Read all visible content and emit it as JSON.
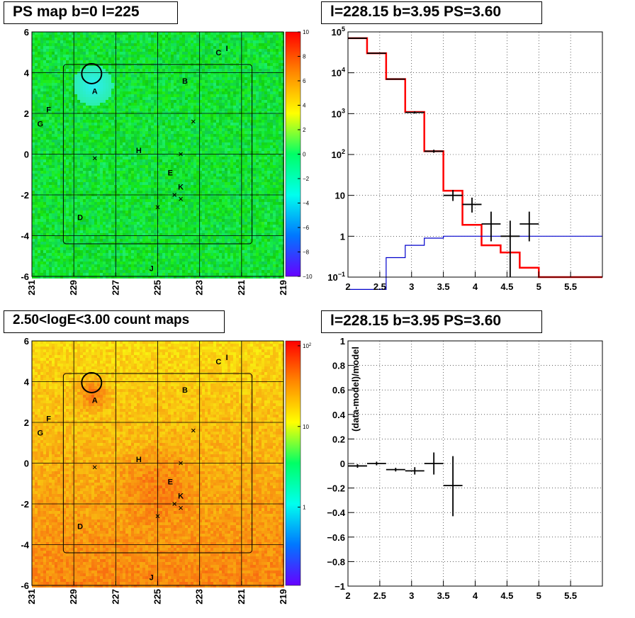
{
  "titles": {
    "top_left": "PS map b=0 l=225",
    "top_right": "l=228.15 b=3.95 PS=3.60",
    "bottom_left": "2.50<logE<3.00 count maps",
    "bottom_right": "l=228.15 b=3.95 PS=3.60"
  },
  "chart_data": [
    {
      "type": "heatmap",
      "title": "PS map b=0 l=225",
      "xlabel": "",
      "ylabel": "",
      "xlim": [
        231,
        219
      ],
      "ylim": [
        -6,
        6
      ],
      "x_ticks": [
        "231",
        "229",
        "227",
        "225",
        "223",
        "221",
        "219"
      ],
      "y_ticks": [
        "6",
        "4",
        "2",
        "0",
        "-2",
        "-4",
        "-6"
      ],
      "colorbar_range": [
        -10,
        10
      ],
      "colorbar_ticks": [
        "10",
        "8",
        "6",
        "4",
        "2",
        "0",
        "−2",
        "−4",
        "−6",
        "−8",
        "−10"
      ],
      "colorbar_colors": [
        "#ff0000",
        "#ff8800",
        "#ffff00",
        "#00ff66",
        "#00ffee",
        "#0077ff",
        "#6600ff"
      ],
      "background_color": "#22e066",
      "source_labels": [
        {
          "label": "A",
          "l": 228.0,
          "b": 3.1
        },
        {
          "label": "B",
          "l": 223.7,
          "b": 3.6
        },
        {
          "label": "C",
          "l": 222.1,
          "b": 5.0
        },
        {
          "label": "I",
          "l": 221.7,
          "b": 5.2
        },
        {
          "label": "D",
          "l": 228.7,
          "b": -3.1
        },
        {
          "label": "E",
          "l": 224.4,
          "b": -0.9
        },
        {
          "label": "F",
          "l": 230.2,
          "b": 2.2
        },
        {
          "label": "G",
          "l": 230.6,
          "b": 1.5
        },
        {
          "label": "H",
          "l": 225.9,
          "b": 0.2
        },
        {
          "label": "J",
          "l": 225.3,
          "b": -5.6
        },
        {
          "label": "K",
          "l": 223.9,
          "b": -1.6
        }
      ],
      "crosses": [
        {
          "l": 223.3,
          "b": 1.6
        },
        {
          "l": 223.9,
          "b": 0.0
        },
        {
          "l": 228.0,
          "b": -0.2
        },
        {
          "l": 224.2,
          "b": -2.0
        },
        {
          "l": 223.9,
          "b": -2.2
        },
        {
          "l": 225.0,
          "b": -2.6
        }
      ],
      "circle": {
        "l": 228.15,
        "b": 3.95
      }
    },
    {
      "type": "line",
      "title": "l=228.15 b=3.95 PS=3.60",
      "xlabel": "",
      "ylabel": "",
      "xlim": [
        2,
        6
      ],
      "ylim": [
        0.1,
        100000
      ],
      "yscale": "log",
      "x_ticks": [
        "2",
        "2.5",
        "3",
        "3.5",
        "4",
        "4.5",
        "5",
        "5.5"
      ],
      "y_ticks": [
        "10^5",
        "10^4",
        "10^3",
        "10^2",
        "10",
        "1",
        "10^-1"
      ],
      "grid": true,
      "series": [
        {
          "color": "#ff0000",
          "style": "step",
          "bins": [
            2.0,
            2.3,
            2.6,
            2.9,
            3.2,
            3.5,
            3.8,
            4.1,
            4.4,
            4.7,
            5.0,
            5.3,
            5.6,
            6.0
          ],
          "values": [
            70000,
            30000,
            7000,
            1100,
            120,
            13,
            1.9,
            0.6,
            0.4,
            0.17,
            0.1,
            0.1,
            0.1
          ]
        },
        {
          "color": "#0000cc",
          "style": "step",
          "bins": [
            2.0,
            2.3,
            2.6,
            2.9,
            3.2,
            3.5,
            3.8,
            4.1,
            4.4,
            4.7,
            5.0,
            5.3,
            5.6,
            6.0
          ],
          "values": [
            0.02,
            0.05,
            0.3,
            0.6,
            0.9,
            1.0,
            1.0,
            1.0,
            1.0,
            1.0,
            1.0,
            1.0,
            1.0
          ]
        },
        {
          "color": "#000000",
          "style": "points",
          "points": [
            {
              "x": 2.15,
              "y": 70000,
              "ylo": 69000,
              "yhi": 71000,
              "xerr": 0.15
            },
            {
              "x": 2.45,
              "y": 30000,
              "ylo": 29600,
              "yhi": 30400,
              "xerr": 0.15
            },
            {
              "x": 2.75,
              "y": 7000,
              "ylo": 6800,
              "yhi": 7200,
              "xerr": 0.15
            },
            {
              "x": 3.05,
              "y": 1070,
              "ylo": 1000,
              "yhi": 1140,
              "xerr": 0.15
            },
            {
              "x": 3.35,
              "y": 120,
              "ylo": 110,
              "yhi": 131,
              "xerr": 0.15
            },
            {
              "x": 3.65,
              "y": 10,
              "ylo": 7.3,
              "yhi": 13.5,
              "xerr": 0.15
            },
            {
              "x": 3.95,
              "y": 6,
              "ylo": 3.8,
              "yhi": 8.8,
              "xerr": 0.15
            },
            {
              "x": 4.25,
              "y": 2,
              "ylo": 0.75,
              "yhi": 4.0,
              "xerr": 0.15
            },
            {
              "x": 4.55,
              "y": 1,
              "ylo": 0.1,
              "yhi": 2.4,
              "xerr": 0.15
            },
            {
              "x": 4.85,
              "y": 2,
              "ylo": 0.75,
              "yhi": 4.0,
              "xerr": 0.15
            }
          ]
        }
      ]
    },
    {
      "type": "heatmap",
      "title": "2.50<logE<3.00 count maps",
      "xlabel": "",
      "ylabel": "",
      "xlim": [
        231,
        219
      ],
      "ylim": [
        -6,
        6
      ],
      "x_ticks": [
        "231",
        "229",
        "227",
        "225",
        "223",
        "221",
        "219"
      ],
      "y_ticks": [
        "6",
        "4",
        "2",
        "0",
        "-2",
        "-4",
        "-6"
      ],
      "colorbar_scale": "log",
      "colorbar_ticks": [
        "10^2",
        "10",
        "1"
      ],
      "colorbar_colors": [
        "#ff0000",
        "#ff8800",
        "#ffff00",
        "#00ff66",
        "#00ffee",
        "#0077ff",
        "#6600ff"
      ],
      "background_color": "#f5a21e",
      "source_labels": [
        {
          "label": "A",
          "l": 228.0,
          "b": 3.1
        },
        {
          "label": "B",
          "l": 223.7,
          "b": 3.6
        },
        {
          "label": "C",
          "l": 222.1,
          "b": 5.0
        },
        {
          "label": "I",
          "l": 221.7,
          "b": 5.2
        },
        {
          "label": "D",
          "l": 228.7,
          "b": -3.1
        },
        {
          "label": "E",
          "l": 224.4,
          "b": -0.9
        },
        {
          "label": "F",
          "l": 230.2,
          "b": 2.2
        },
        {
          "label": "G",
          "l": 230.6,
          "b": 1.5
        },
        {
          "label": "H",
          "l": 225.9,
          "b": 0.2
        },
        {
          "label": "J",
          "l": 225.3,
          "b": -5.6
        },
        {
          "label": "K",
          "l": 223.9,
          "b": -1.6
        }
      ],
      "crosses": [
        {
          "l": 223.3,
          "b": 1.6
        },
        {
          "l": 223.9,
          "b": 0.0
        },
        {
          "l": 228.0,
          "b": -0.2
        },
        {
          "l": 224.2,
          "b": -2.0
        },
        {
          "l": 223.9,
          "b": -2.2
        },
        {
          "l": 225.0,
          "b": -2.6
        }
      ],
      "circle": {
        "l": 228.15,
        "b": 3.95
      }
    },
    {
      "type": "scatter",
      "title": "l=228.15 b=3.95 PS=3.60",
      "xlabel": "",
      "ylabel": "(data-model)/model",
      "xlim": [
        2,
        6
      ],
      "ylim": [
        -1,
        1
      ],
      "x_ticks": [
        "2",
        "2.5",
        "3",
        "3.5",
        "4",
        "4.5",
        "5",
        "5.5"
      ],
      "y_ticks": [
        "1",
        "0.8",
        "0.6",
        "0.4",
        "0.2",
        "0",
        "−0.2",
        "−0.4",
        "−0.6",
        "−0.8",
        "−1"
      ],
      "grid": true,
      "points": [
        {
          "x": 2.15,
          "y": -0.02,
          "ylo": -0.035,
          "yhi": -0.005,
          "xerr": 0.15
        },
        {
          "x": 2.45,
          "y": 0.0,
          "ylo": -0.015,
          "yhi": 0.015,
          "xerr": 0.15
        },
        {
          "x": 2.75,
          "y": -0.05,
          "ylo": -0.065,
          "yhi": -0.035,
          "xerr": 0.15
        },
        {
          "x": 3.05,
          "y": -0.06,
          "ylo": -0.09,
          "yhi": -0.03,
          "xerr": 0.15
        },
        {
          "x": 3.35,
          "y": 0.0,
          "ylo": -0.09,
          "yhi": 0.09,
          "xerr": 0.15
        },
        {
          "x": 3.65,
          "y": -0.18,
          "ylo": -0.43,
          "yhi": 0.06,
          "xerr": 0.15
        }
      ]
    }
  ]
}
